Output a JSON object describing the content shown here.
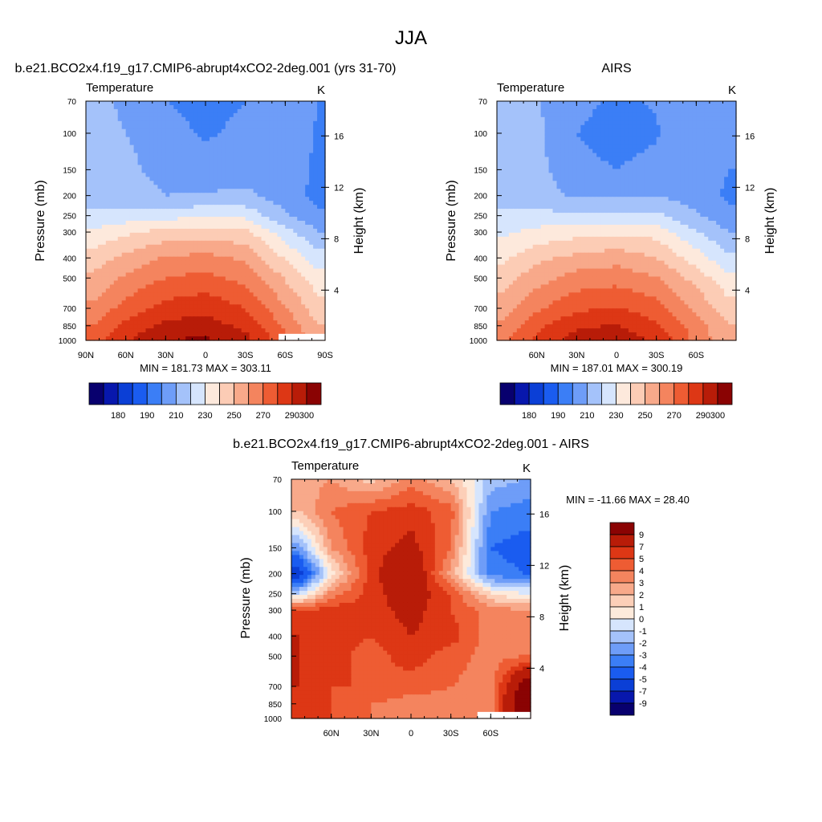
{
  "page": {
    "title": "JJA"
  },
  "colors": {
    "abs_scale": [
      "#08006e",
      "#0717ad",
      "#0b3fd6",
      "#1a5cf0",
      "#3b7ef6",
      "#6e9df8",
      "#a4c2fa",
      "#d6e5fd",
      "#fde9dc",
      "#fcccb5",
      "#f8a98a",
      "#f4845e",
      "#ee5c33",
      "#dd3715",
      "#b81c08",
      "#8a0303"
    ],
    "diff_scale": [
      "#08006e",
      "#0717ad",
      "#0b3fd6",
      "#1a5cf0",
      "#3b7ef6",
      "#6e9df8",
      "#a4c2fa",
      "#d6e5fd",
      "#fdeadb",
      "#fccfb8",
      "#f8a98a",
      "#f4845e",
      "#ee5c33",
      "#dd3715",
      "#b81c08",
      "#8a0303"
    ]
  },
  "chart_data": [
    {
      "type": "heatmap",
      "id": "model",
      "title": "b.e21.BCO2x4.f19_g17.CMIP6-abrupt4xCO2-2deg.001 (yrs 31-70)",
      "left_label": "Temperature",
      "units": "K",
      "ylabel": "Pressure (mb)",
      "ylabel_right": "Height (km)",
      "xlabel": "",
      "xlim": [
        90,
        -90
      ],
      "ylim": [
        1000,
        70
      ],
      "y_scale": "log",
      "x_ticks": [
        90,
        60,
        30,
        0,
        -30,
        -60,
        -90
      ],
      "x_tick_labels": [
        "90N",
        "60N",
        "30N",
        "0",
        "30S",
        "60S",
        "90S"
      ],
      "y_ticks": [
        70,
        100,
        150,
        200,
        250,
        300,
        400,
        500,
        700,
        850,
        1000
      ],
      "y_tick_labels": [
        "70",
        "100",
        "150",
        "200",
        "250",
        "300",
        "400",
        "500",
        "700",
        "850",
        "1000"
      ],
      "height_ticks": [
        4,
        8,
        12,
        16
      ],
      "height_tick_labels": [
        "4",
        "8",
        "12",
        "16"
      ],
      "min_max_text": "MIN = 181.73  MAX = 303.11",
      "min": 181.73,
      "max": 303.11,
      "field": {
        "x": [
          85,
          60,
          30,
          0,
          -30,
          -60,
          -85
        ],
        "y": [
          70,
          100,
          150,
          200,
          250,
          300,
          400,
          500,
          700,
          850,
          1000
        ],
        "z": [
          [
            213,
            208,
            200,
            197,
            200,
            206,
            200
          ],
          [
            214,
            210,
            203,
            199,
            202,
            206,
            199
          ],
          [
            216,
            213,
            206,
            203,
            206,
            205,
            198
          ],
          [
            217,
            215,
            210,
            211,
            212,
            205,
            197
          ],
          [
            221,
            224,
            226,
            228,
            227,
            212,
            202
          ],
          [
            232,
            238,
            244,
            245,
            243,
            224,
            210
          ],
          [
            244,
            253,
            261,
            263,
            258,
            239,
            224
          ],
          [
            252,
            262,
            270,
            273,
            267,
            249,
            234
          ],
          [
            262,
            274,
            284,
            287,
            280,
            261,
            244
          ],
          [
            270,
            283,
            292,
            295,
            287,
            268,
            250
          ],
          [
            276,
            289,
            300,
            302,
            294,
            273,
            254
          ]
        ]
      },
      "missing_region": {
        "x_from": -55,
        "x_to": -90,
        "y_from": 930,
        "y_to": 1000
      },
      "colorbar": {
        "levels": [
          175,
          180,
          185,
          190,
          200,
          210,
          220,
          230,
          240,
          250,
          260,
          270,
          280,
          290,
          300
        ],
        "labels": [
          "180",
          "190",
          "210",
          "230",
          "250",
          "270",
          "290",
          "300"
        ]
      }
    },
    {
      "type": "heatmap",
      "id": "airs",
      "title": "AIRS",
      "left_label": "Temperature",
      "units": "K",
      "ylabel": "Pressure (mb)",
      "ylabel_right": "Height (km)",
      "xlabel": "",
      "xlim": [
        90,
        -90
      ],
      "ylim": [
        1000,
        70
      ],
      "y_scale": "log",
      "x_ticks": [
        60,
        30,
        0,
        -30,
        -60
      ],
      "x_tick_labels": [
        "60N",
        "30N",
        "0",
        "30S",
        "60S"
      ],
      "y_ticks": [
        70,
        100,
        150,
        200,
        250,
        300,
        400,
        500,
        700,
        850,
        1000
      ],
      "y_tick_labels": [
        "70",
        "100",
        "150",
        "200",
        "250",
        "300",
        "400",
        "500",
        "700",
        "850",
        "1000"
      ],
      "height_ticks": [
        4,
        8,
        12,
        16
      ],
      "height_tick_labels": [
        "4",
        "8",
        "12",
        "16"
      ],
      "min_max_text": "MIN = 187.01  MAX = 300.19",
      "min": 187.01,
      "max": 300.19,
      "field": {
        "x": [
          85,
          60,
          30,
          0,
          -30,
          -60,
          -85
        ],
        "y": [
          70,
          100,
          150,
          200,
          250,
          300,
          400,
          500,
          700,
          850,
          1000
        ],
        "z": [
          [
            214,
            211,
            203,
            198,
            201,
            209,
            203
          ],
          [
            215,
            212,
            200,
            196,
            199,
            208,
            202
          ],
          [
            217,
            213,
            203,
            200,
            203,
            206,
            200
          ],
          [
            218,
            215,
            208,
            208,
            210,
            205,
            198
          ],
          [
            221,
            223,
            222,
            223,
            223,
            211,
            203
          ],
          [
            228,
            233,
            236,
            238,
            236,
            221,
            210
          ],
          [
            238,
            247,
            253,
            256,
            250,
            235,
            222
          ],
          [
            246,
            256,
            264,
            266,
            261,
            246,
            232
          ],
          [
            255,
            268,
            278,
            281,
            274,
            258,
            244
          ],
          [
            262,
            277,
            288,
            291,
            282,
            265,
            250
          ],
          [
            268,
            283,
            295,
            298,
            288,
            267,
            252
          ]
        ]
      },
      "colorbar": {
        "levels": [
          175,
          180,
          185,
          190,
          200,
          210,
          220,
          230,
          240,
          250,
          260,
          270,
          280,
          290,
          300
        ],
        "labels": [
          "180",
          "190",
          "210",
          "230",
          "250",
          "270",
          "290",
          "300"
        ]
      }
    },
    {
      "type": "heatmap",
      "id": "diff",
      "title": "b.e21.BCO2x4.f19_g17.CMIP6-abrupt4xCO2-2deg.001 - AIRS",
      "left_label": "Temperature",
      "units": "K",
      "ylabel": "Pressure (mb)",
      "ylabel_right": "Height (km)",
      "xlabel": "",
      "xlim": [
        90,
        -90
      ],
      "ylim": [
        1000,
        70
      ],
      "y_scale": "log",
      "x_ticks": [
        60,
        30,
        0,
        -30,
        -60
      ],
      "x_tick_labels": [
        "60N",
        "30N",
        "0",
        "30S",
        "60S"
      ],
      "y_ticks": [
        70,
        100,
        150,
        200,
        250,
        300,
        400,
        500,
        700,
        850,
        1000
      ],
      "y_tick_labels": [
        "70",
        "100",
        "150",
        "200",
        "250",
        "300",
        "400",
        "500",
        "700",
        "850",
        "1000"
      ],
      "height_ticks": [
        4,
        8,
        12,
        16
      ],
      "height_tick_labels": [
        "4",
        "8",
        "12",
        "16"
      ],
      "min_max_text": "MIN = -11.66  MAX =  28.40",
      "min": -11.66,
      "max": 28.4,
      "field": {
        "x": [
          85,
          60,
          30,
          0,
          -30,
          -60,
          -85
        ],
        "y": [
          70,
          100,
          150,
          200,
          250,
          300,
          400,
          500,
          700,
          850,
          1000
        ],
        "z": [
          [
            1.5,
            2.0,
            0.5,
            2.5,
            1.0,
            -2.5,
            -3.0
          ],
          [
            1.0,
            3.0,
            4.0,
            4.5,
            3.5,
            -4.0,
            -4.5
          ],
          [
            -3.5,
            2.0,
            4.5,
            5.5,
            3.0,
            -5.0,
            -5.5
          ],
          [
            -8.0,
            -0.5,
            4.5,
            7.0,
            1.5,
            -4.5,
            -5.0
          ],
          [
            -2.0,
            2.5,
            4.5,
            6.0,
            4.0,
            0.0,
            -1.0
          ],
          [
            4.0,
            4.5,
            4.5,
            5.5,
            4.0,
            2.5,
            2.0
          ],
          [
            5.0,
            4.5,
            4.0,
            5.0,
            4.5,
            2.5,
            2.0
          ],
          [
            5.0,
            4.5,
            3.5,
            4.5,
            3.5,
            2.5,
            3.0
          ],
          [
            5.0,
            4.0,
            4.0,
            3.5,
            3.0,
            2.5,
            8.0
          ],
          [
            4.5,
            4.0,
            3.0,
            2.5,
            2.5,
            2.0,
            9.5
          ],
          [
            5.0,
            4.0,
            3.0,
            2.5,
            2.0,
            2.0,
            9.5
          ]
        ]
      },
      "missing_region": {
        "x_from": -50,
        "x_to": -90,
        "y_from": 930,
        "y_to": 1000
      },
      "colorbar": {
        "levels": [
          -11,
          -9,
          -7,
          -5,
          -4,
          -3,
          -2,
          -1,
          0,
          1,
          2,
          3,
          4,
          5,
          7,
          9
        ],
        "labels": [
          "-9",
          "-7",
          "-5",
          "-4",
          "-3",
          "-2",
          "-1",
          "0",
          "1",
          "2",
          "3",
          "4",
          "5",
          "7",
          "9"
        ]
      }
    }
  ]
}
